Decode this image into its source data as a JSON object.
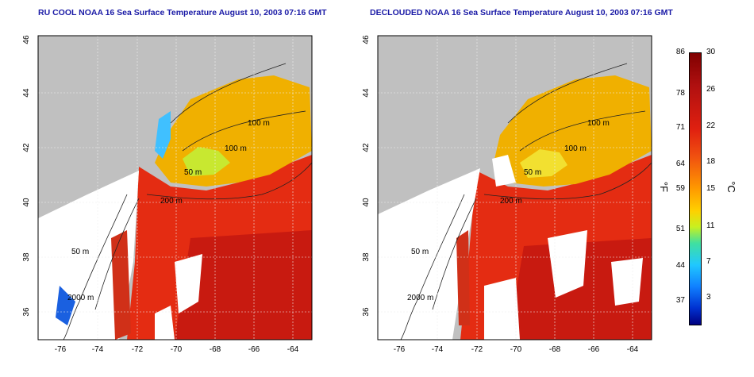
{
  "titles": {
    "left": "RU COOL NOAA 16 Sea Surface Temperature August 10, 2003 07:16 GMT",
    "right": "DECLOUDED NOAA 16 Sea Surface Temperature August 10, 2003 07:16 GMT"
  },
  "map": {
    "x_ticks": [
      "-76",
      "-74",
      "-72",
      "-70",
      "-68",
      "-66",
      "-64"
    ],
    "y_ticks": [
      "46",
      "44",
      "42",
      "40",
      "38",
      "36"
    ],
    "contours": [
      "100 m",
      "100 m",
      "50 m",
      "200 m",
      "50 m",
      "2000 m"
    ],
    "land_color": "#c0c0c0",
    "cloud_color": "#ffffff"
  },
  "colorbar": {
    "left_label": "°F",
    "right_label": "°C",
    "fahrenheit_ticks": [
      "86",
      "78",
      "71",
      "64",
      "59",
      "51",
      "44",
      "37"
    ],
    "celsius_ticks": [
      "30",
      "26",
      "22",
      "18",
      "15",
      "11",
      "7",
      "3"
    ]
  }
}
